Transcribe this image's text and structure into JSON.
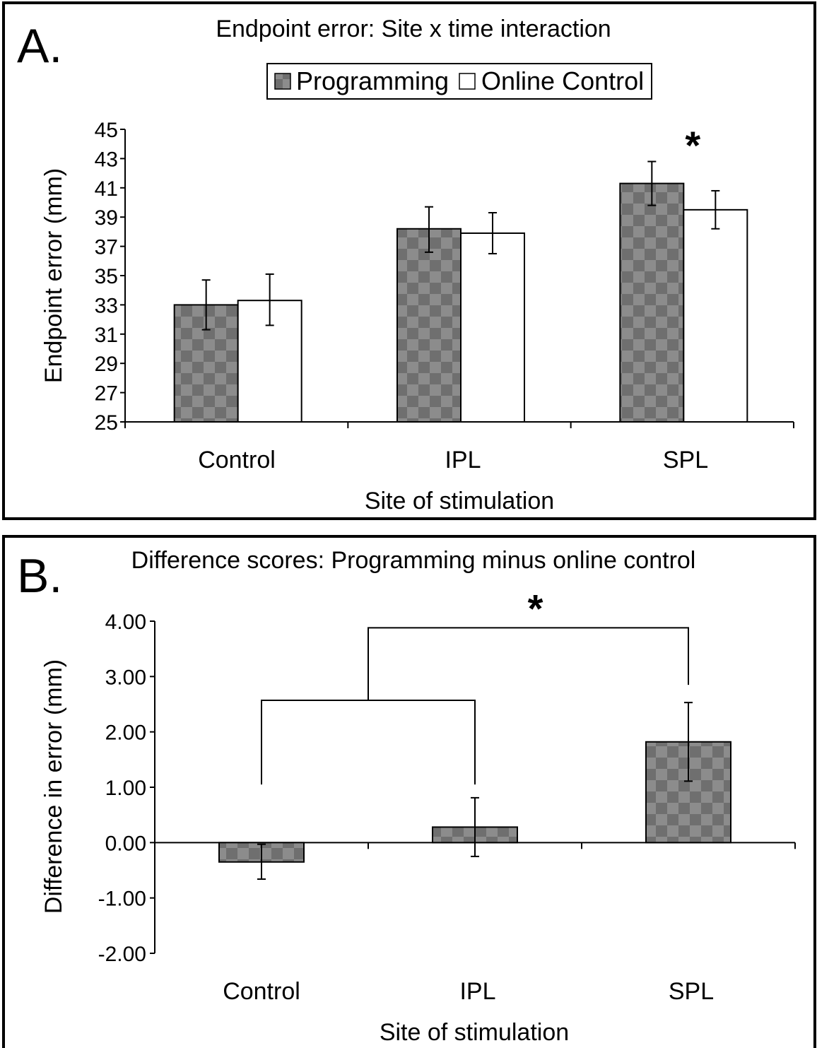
{
  "figure": {
    "panel_a_letter": "A.",
    "panel_b_letter": "B."
  },
  "chart_data": [
    {
      "type": "bar",
      "title": "Endpoint error: Site x time interaction",
      "xlabel": "Site of stimulation",
      "ylabel": "Endpoint error (mm)",
      "categories": [
        "Control",
        "IPL",
        "SPL"
      ],
      "ylim": [
        25,
        45
      ],
      "yticks": [
        "25",
        "27",
        "29",
        "31",
        "33",
        "35",
        "37",
        "39",
        "41",
        "43",
        "45"
      ],
      "legend_position": "top-center",
      "series": [
        {
          "name": "Programming",
          "values": [
            33.0,
            38.2,
            41.3
          ],
          "err_low": [
            31.3,
            36.6,
            39.8
          ],
          "err_high": [
            34.7,
            39.7,
            42.8
          ],
          "fill": "checkered-gray",
          "color": "#7a7a7a"
        },
        {
          "name": "Online Control",
          "values": [
            33.3,
            37.9,
            39.5
          ],
          "err_low": [
            31.6,
            36.5,
            38.2
          ],
          "err_high": [
            35.1,
            39.3,
            40.8
          ],
          "fill": "white",
          "color": "#ffffff"
        }
      ],
      "annotations": [
        {
          "text": "*",
          "category": "SPL",
          "y": 44.7
        }
      ]
    },
    {
      "type": "bar",
      "title": "Difference scores: Programming minus online control",
      "xlabel": "Site of stimulation",
      "ylabel": "Difference in  error (mm)",
      "categories": [
        "Control",
        "IPL",
        "SPL"
      ],
      "ylim": [
        -2,
        4
      ],
      "yticks": [
        "-2.00",
        "-1.00",
        "0.00",
        "1.00",
        "2.00",
        "3.00",
        "4.00"
      ],
      "series": [
        {
          "values": [
            -0.35,
            0.28,
            1.82
          ],
          "err_low": [
            -0.66,
            -0.25,
            1.11
          ],
          "err_high": [
            -0.03,
            0.81,
            2.53
          ],
          "fill": "checkered-gray",
          "color": "#7a7a7a"
        }
      ],
      "comparison": {
        "left_group": [
          "Control",
          "IPL"
        ],
        "right_group": [
          "SPL"
        ],
        "left_bracket_y": 2.57,
        "top_bracket_y": 3.88,
        "left_drop_y": 1.05,
        "right_drop_y": 2.85,
        "ipl_drop_y": 1.05,
        "label": "*"
      }
    }
  ]
}
